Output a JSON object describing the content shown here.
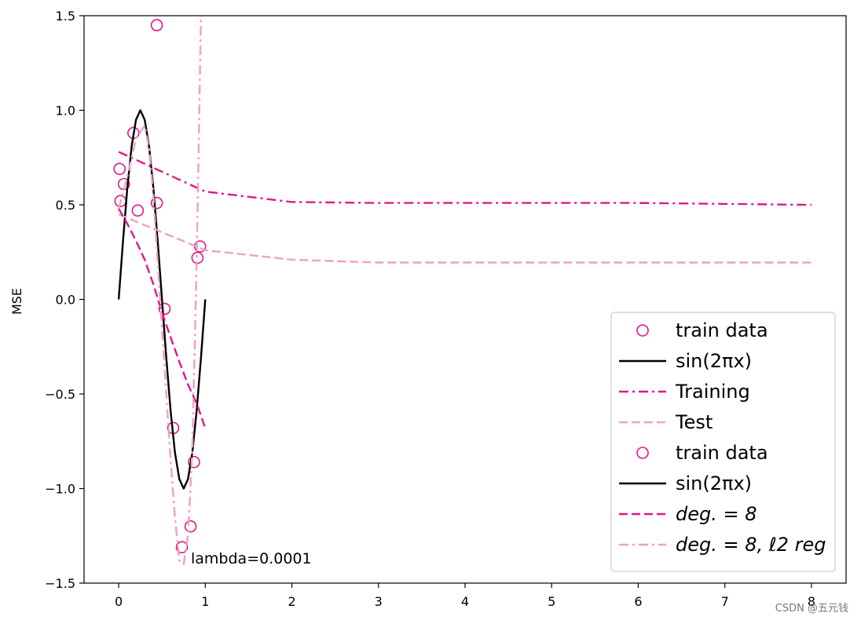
{
  "chart_data": {
    "type": "line",
    "title": "",
    "xlabel": "",
    "ylabel": "MSE",
    "xlim": [
      -0.4,
      8.4
    ],
    "ylim": [
      -1.5,
      1.5
    ],
    "x_ticks": [
      0,
      1,
      2,
      3,
      4,
      5,
      6,
      7,
      8
    ],
    "x_tick_labels": [
      "0",
      "1",
      "2",
      "3",
      "4",
      "5",
      "6",
      "7",
      "8"
    ],
    "y_ticks": [
      -1.5,
      -1.0,
      -0.5,
      0.0,
      0.5,
      1.0,
      1.5
    ],
    "y_tick_labels": [
      "−1.5",
      "−1.0",
      "−0.5",
      "0.0",
      "0.5",
      "1.0",
      "1.5"
    ],
    "grid": false,
    "legend_position": "lower-right",
    "annotation": "lambda=0.0001",
    "watermark": "CSDN @五元钱",
    "colors": {
      "magenta": "#e0188a",
      "pink": "#f0a0c0",
      "black": "#000000"
    },
    "series": [
      {
        "name": "train data",
        "kind": "scatter",
        "color": "#e0188a",
        "x": [
          0.01,
          0.02,
          0.06,
          0.17,
          0.22,
          0.44,
          0.44,
          0.53,
          0.63,
          0.73,
          0.83,
          0.87,
          0.91,
          0.94
        ],
        "y": [
          0.69,
          0.52,
          0.61,
          0.88,
          0.47,
          1.45,
          0.51,
          -0.05,
          -0.68,
          -1.31,
          -1.2,
          -0.86,
          0.22,
          0.28
        ]
      },
      {
        "name": "sin(2πx)",
        "kind": "line",
        "color": "#000000",
        "dash": "solid",
        "x": [
          0.0,
          0.05,
          0.1,
          0.15,
          0.2,
          0.25,
          0.3,
          0.35,
          0.4,
          0.45,
          0.5,
          0.55,
          0.6,
          0.65,
          0.7,
          0.75,
          0.8,
          0.85,
          0.9,
          0.95,
          1.0
        ],
        "y": [
          0.0,
          0.31,
          0.59,
          0.81,
          0.95,
          1.0,
          0.95,
          0.81,
          0.59,
          0.31,
          0.0,
          -0.31,
          -0.59,
          -0.81,
          -0.95,
          -1.0,
          -0.95,
          -0.81,
          -0.59,
          -0.31,
          0.0
        ]
      },
      {
        "name": "Training",
        "kind": "line",
        "color": "#e0188a",
        "dash": "dashdot",
        "x": [
          0,
          1,
          2,
          3,
          4,
          5,
          6,
          7,
          8
        ],
        "y": [
          0.78,
          0.57,
          0.515,
          0.51,
          0.51,
          0.51,
          0.51,
          0.505,
          0.5
        ]
      },
      {
        "name": "Test",
        "kind": "line",
        "color": "#f0a0c0",
        "dash": "dashed",
        "x": [
          0,
          1,
          2,
          3,
          4,
          5,
          6,
          7,
          8
        ],
        "y": [
          0.45,
          0.26,
          0.21,
          0.195,
          0.195,
          0.195,
          0.195,
          0.195,
          0.195
        ]
      },
      {
        "name": "deg. = 8",
        "kind": "line",
        "color": "#e0188a",
        "dash": "dashed",
        "x": [
          0.0,
          0.1,
          0.2,
          0.3,
          0.4,
          0.5,
          0.6,
          0.7,
          0.8,
          0.9,
          1.0
        ],
        "y": [
          0.48,
          0.4,
          0.31,
          0.21,
          0.08,
          -0.07,
          -0.2,
          -0.33,
          -0.45,
          -0.55,
          -0.68
        ]
      },
      {
        "name": "deg. = 8, ℓ2 reg",
        "kind": "line",
        "color": "#f0a0c0",
        "dash": "dashdot",
        "x": [
          0.0,
          0.1,
          0.2,
          0.3,
          0.35,
          0.4,
          0.45,
          0.5,
          0.55,
          0.6,
          0.65,
          0.7,
          0.75,
          0.8,
          0.85,
          0.9,
          0.92,
          0.95
        ],
        "y": [
          0.48,
          0.65,
          0.85,
          0.92,
          0.8,
          0.55,
          0.2,
          -0.15,
          -0.5,
          -0.85,
          -1.15,
          -1.38,
          -1.4,
          -1.25,
          -0.8,
          0.2,
          0.7,
          1.5
        ]
      }
    ],
    "legend": [
      {
        "label": "train data",
        "marker": "circle",
        "color": "#e0188a"
      },
      {
        "label": "sin(2πx)",
        "marker": "line",
        "dash": "solid",
        "color": "#000000"
      },
      {
        "label": "Training",
        "marker": "line",
        "dash": "dashdot",
        "color": "#e0188a"
      },
      {
        "label": "Test",
        "marker": "line",
        "dash": "dashed",
        "color": "#f0a0c0"
      },
      {
        "label": "train data",
        "marker": "circle",
        "color": "#e0188a"
      },
      {
        "label": "sin(2πx)",
        "marker": "line",
        "dash": "solid",
        "color": "#000000"
      },
      {
        "label": "deg. = 8",
        "marker": "line",
        "dash": "dashed",
        "color": "#e0188a",
        "italic": true
      },
      {
        "label": "deg. = 8, ℓ2 reg",
        "marker": "line",
        "dash": "dashdot",
        "color": "#f0a0c0",
        "italic": true
      }
    ]
  }
}
